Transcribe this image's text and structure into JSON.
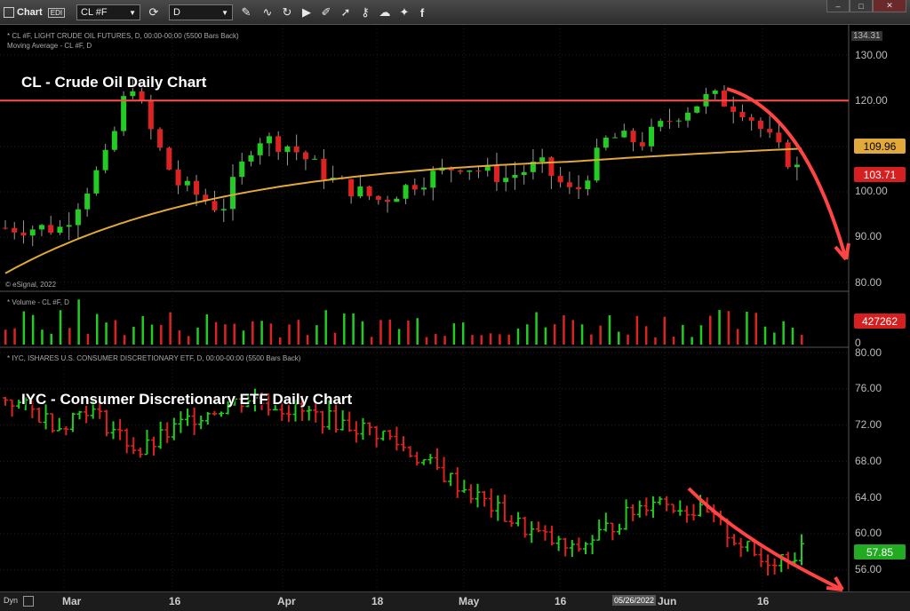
{
  "toolbar": {
    "app_label": "Chart",
    "app_badge": "EDI",
    "symbol": "CL #F",
    "interval": "D",
    "icons": [
      "refresh-icon",
      "pencil-icon",
      "curve-icon",
      "play-icon",
      "edit-icon",
      "cursor-icon",
      "lock-icon",
      "cloud-icon",
      "twitter-icon",
      "facebook-icon"
    ],
    "window_buttons": [
      "–",
      "□",
      "✕"
    ]
  },
  "price_panel": {
    "header1": "* CL #F, LIGHT CRUDE OIL FUTURES, D, 00:00-00:00 (5500 Bars Back)",
    "header2": "Moving Average - CL #F, D",
    "overlay_title": "CL - Crude Oil Daily Chart",
    "top_value": "134.31",
    "ticks": [
      "130.00",
      "120.00",
      "110.00",
      "100.00",
      "90.00",
      "80.00"
    ],
    "ma_value": "109.96",
    "last_value": "103.71",
    "credit": "© eSignal, 2022",
    "hline_color": "#ff4d4d",
    "ma_color": "#e0a93a"
  },
  "volume_panel": {
    "header": "* Volume - CL #F, D",
    "value": "427262",
    "zero": "0"
  },
  "etf_panel": {
    "header": "* IYC, ISHARES U.S. CONSUMER DISCRETIONARY ETF, D, 00:00-00:00 (5500 Bars Back)",
    "overlay_title": "IYC - Consumer Discretionary ETF Daily Chart",
    "ticks": [
      "80.00",
      "76.00",
      "72.00",
      "68.00",
      "64.00",
      "60.00",
      "56.00"
    ],
    "last_value": "57.85"
  },
  "xaxis": {
    "labels": [
      "Mar",
      "16",
      "Apr",
      "18",
      "May",
      "16",
      "Jun",
      "16"
    ],
    "cursor_date": "05/26/2022"
  },
  "bottom": {
    "dyn": "Dyn"
  },
  "colors": {
    "up": "#22cc22",
    "down": "#dd2222",
    "arrow": "#ff4444"
  }
}
